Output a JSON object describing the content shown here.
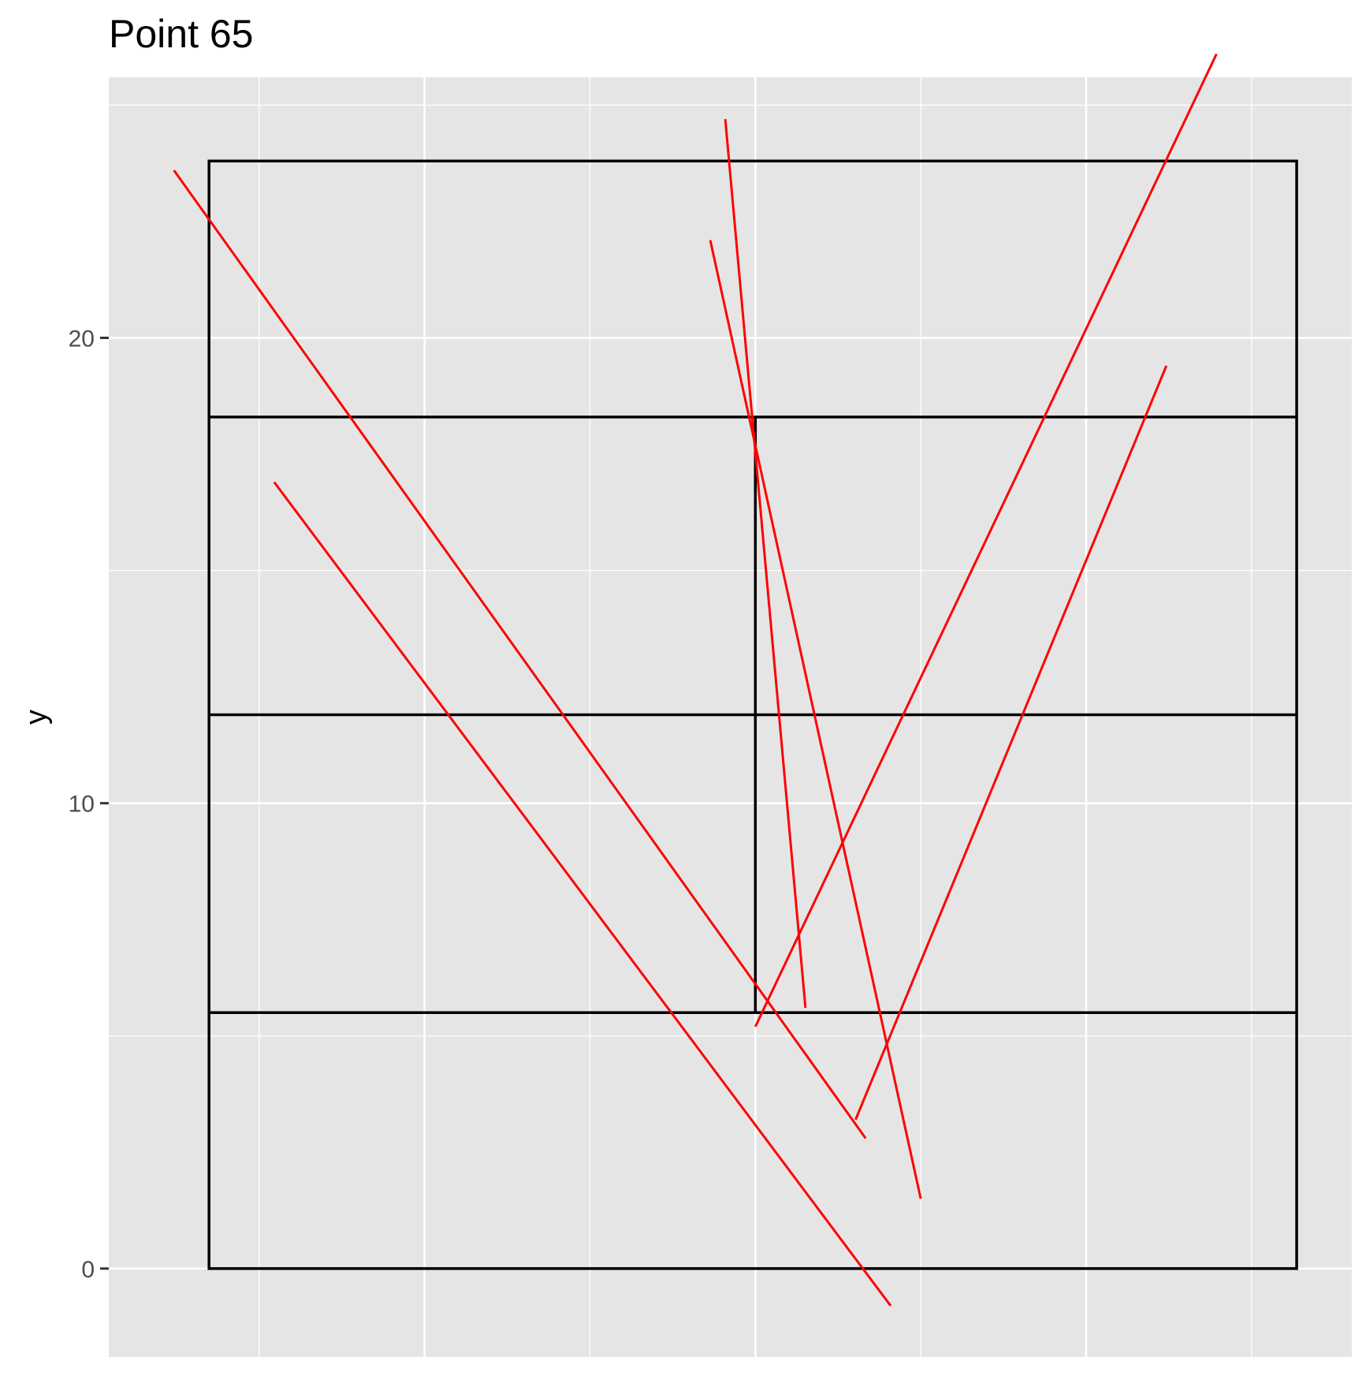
{
  "chart_data": {
    "type": "line",
    "title": "Point 65",
    "xlabel": "",
    "ylabel": "y",
    "xlim": [
      -5.6,
      19.2
    ],
    "ylim": [
      -1.9,
      25.6
    ],
    "x_gridlines": [
      -2.6,
      0.7,
      4.0,
      7.3,
      10.6,
      13.9,
      17.2
    ],
    "y_major_ticks": [
      0,
      10,
      20
    ],
    "y_minor_ticks": [
      5,
      15,
      25
    ],
    "grid": true,
    "background_color": "#e5e5e5",
    "grid_color": "#ffffff",
    "rectangles": [
      {
        "x0": -3.6,
        "x1": 18.1,
        "y0": 0,
        "y1": 23.8
      },
      {
        "x0": -3.6,
        "x1": 18.1,
        "y0": 18.3,
        "y1": 18.3
      },
      {
        "x0": -3.6,
        "x1": 18.1,
        "y0": 11.9,
        "y1": 11.9
      },
      {
        "x0": -3.6,
        "x1": 18.1,
        "y0": 5.5,
        "y1": 5.5
      },
      {
        "x0": 7.3,
        "x1": 7.3,
        "y0": 5.5,
        "y1": 18.3
      }
    ],
    "rectangle_color": "#000000",
    "segments": [
      {
        "x": [
          -4.3,
          9.5
        ],
        "y": [
          23.6,
          2.8
        ]
      },
      {
        "x": [
          -2.3,
          10.0
        ],
        "y": [
          16.9,
          -0.8
        ]
      },
      {
        "x": [
          6.4,
          10.6
        ],
        "y": [
          22.1,
          1.5
        ]
      },
      {
        "x": [
          6.7,
          8.3
        ],
        "y": [
          24.7,
          5.6
        ]
      },
      {
        "x": [
          7.3,
          16.5
        ],
        "y": [
          5.2,
          26.1
        ]
      },
      {
        "x": [
          9.3,
          15.5
        ],
        "y": [
          3.2,
          19.4
        ]
      }
    ],
    "segment_color": "#ff0000"
  }
}
